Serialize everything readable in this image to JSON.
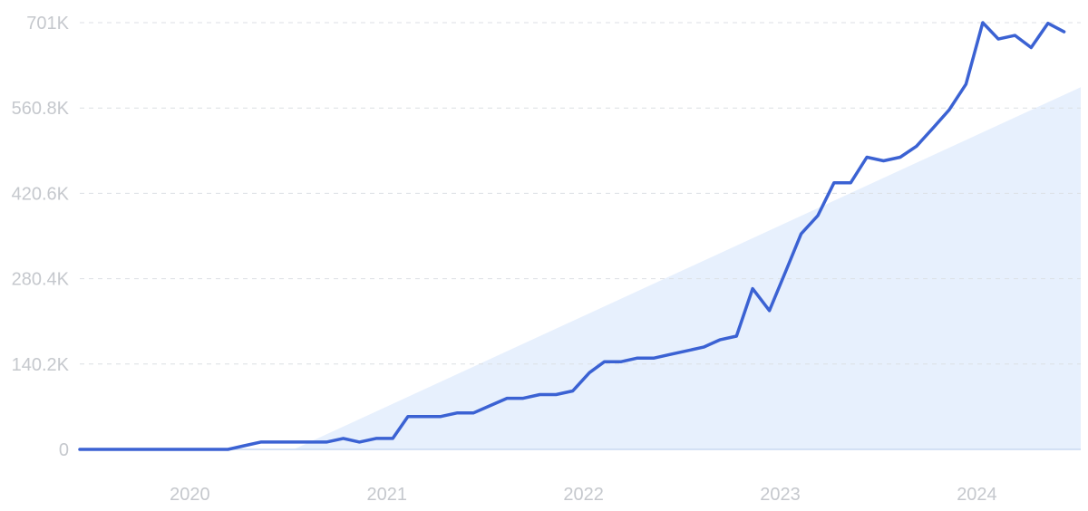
{
  "chart_data": {
    "type": "line",
    "title": "",
    "xlabel": "",
    "ylabel": "",
    "ylim": [
      0,
      701000
    ],
    "grid": true,
    "legend": "none",
    "y_ticks": [
      {
        "value": 0,
        "label": "0"
      },
      {
        "value": 140200,
        "label": "140.2K"
      },
      {
        "value": 280400,
        "label": "280.4K"
      },
      {
        "value": 420600,
        "label": "420.6K"
      },
      {
        "value": 560800,
        "label": "560.8K"
      },
      {
        "value": 701000,
        "label": "701K"
      }
    ],
    "x_ticks": [
      {
        "value": "2020-01-01",
        "label": "2020"
      },
      {
        "value": "2021-01-01",
        "label": "2021"
      },
      {
        "value": "2022-01-01",
        "label": "2022"
      },
      {
        "value": "2023-01-01",
        "label": "2023"
      },
      {
        "value": "2024-01-01",
        "label": "2024"
      }
    ],
    "x_range": [
      "2019-07-01",
      "2024-08-01"
    ],
    "series": [
      {
        "x": [
          "2019-07-01",
          "2019-08-01",
          "2019-09-01",
          "2019-10-01",
          "2019-11-01",
          "2019-12-01",
          "2020-01-01",
          "2020-02-01",
          "2020-03-01",
          "2020-04-01",
          "2020-05-01",
          "2020-06-01",
          "2020-07-01",
          "2020-08-01",
          "2020-09-01",
          "2020-10-01",
          "2020-11-01",
          "2020-12-01",
          "2021-01-01",
          "2021-02-01",
          "2021-03-01",
          "2021-04-01",
          "2021-05-01",
          "2021-06-01",
          "2021-07-01",
          "2021-08-01",
          "2021-09-01",
          "2021-10-01",
          "2021-11-01",
          "2021-12-01",
          "2022-01-01",
          "2022-02-01",
          "2022-03-01",
          "2022-04-01",
          "2022-05-01",
          "2022-06-01",
          "2022-07-01",
          "2022-08-01",
          "2022-09-01",
          "2022-10-01",
          "2022-11-01",
          "2022-12-01",
          "2023-01-01",
          "2023-02-01",
          "2023-03-01",
          "2023-04-01",
          "2023-05-01",
          "2023-06-01",
          "2023-07-01",
          "2023-08-01",
          "2023-09-01",
          "2023-10-01",
          "2023-11-01",
          "2023-12-01",
          "2024-01-01",
          "2024-02-01",
          "2024-03-01",
          "2024-04-01",
          "2024-05-01",
          "2024-06-01",
          "2024-07-01"
        ],
        "values": [
          0,
          0,
          0,
          0,
          0,
          0,
          0,
          0,
          0,
          0,
          6000,
          12000,
          12000,
          12000,
          12000,
          12000,
          18000,
          12000,
          18000,
          18000,
          54000,
          54000,
          54000,
          60000,
          60000,
          72000,
          84000,
          84000,
          90000,
          90000,
          96000,
          126000,
          144000,
          144000,
          150000,
          150000,
          156000,
          162000,
          168000,
          180000,
          186000,
          264000,
          228000,
          294000,
          354000,
          384000,
          438000,
          438000,
          480000,
          474000,
          480000,
          498000,
          528000,
          558000,
          600000,
          701000,
          674000,
          680000,
          660000,
          700000,
          686000
        ]
      }
    ],
    "trend": {
      "start": [
        "2020-08-01",
        0
      ],
      "end": [
        "2024-08-01",
        595000
      ]
    },
    "colors": {
      "line": "#3b62d3",
      "trend_fill": "#e7f0fd",
      "grid": "#dcdfe4",
      "baseline": "#c8d9f2",
      "tick_text": "#c5c8cd"
    }
  }
}
